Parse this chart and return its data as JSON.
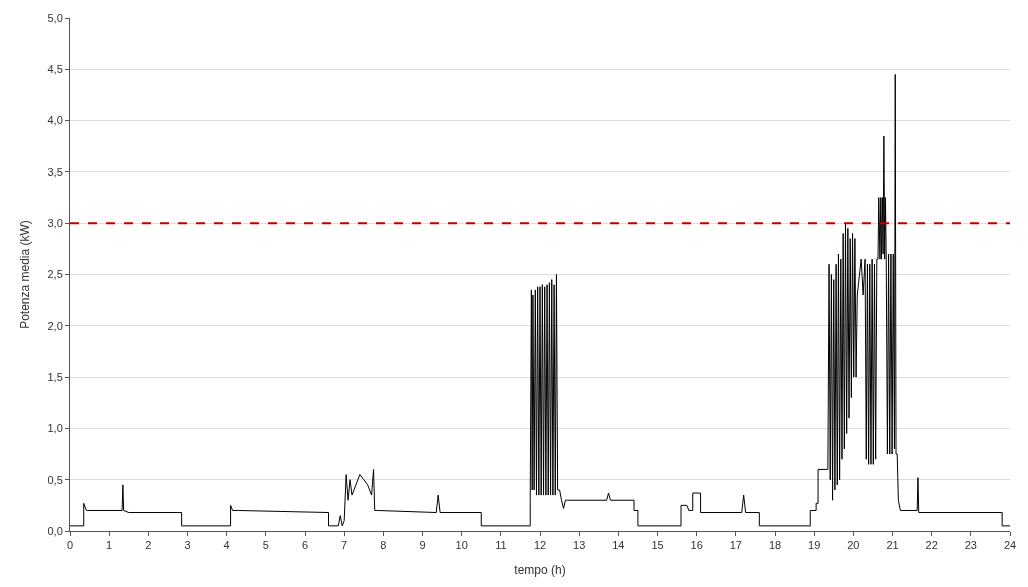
{
  "chart_data": {
    "type": "line",
    "xlabel": "tempo (h)",
    "ylabel": "Potenza media (kW)",
    "xlim": [
      0,
      24
    ],
    "xticks": [
      0,
      1,
      2,
      3,
      4,
      5,
      6,
      7,
      8,
      9,
      10,
      11,
      12,
      13,
      14,
      15,
      16,
      17,
      18,
      19,
      20,
      21,
      22,
      23,
      24
    ],
    "ylim": [
      0,
      5
    ],
    "yticks": [
      {
        "value": 0,
        "label": "0,0"
      },
      {
        "value": 0.5,
        "label": "0,5"
      },
      {
        "value": 1,
        "label": "1,0"
      },
      {
        "value": 1.5,
        "label": "1,5"
      },
      {
        "value": 2,
        "label": "2,0"
      },
      {
        "value": 2.5,
        "label": "2,5"
      },
      {
        "value": 3,
        "label": "3,0"
      },
      {
        "value": 3.5,
        "label": "3,5"
      },
      {
        "value": 4,
        "label": "4,0"
      },
      {
        "value": 4.5,
        "label": "4,5"
      },
      {
        "value": 5,
        "label": "5,0"
      }
    ],
    "grid": "y",
    "marker": "none",
    "line_style": "solid",
    "ref_lines": [
      {
        "axis": "y",
        "value": 3,
        "color": "#c00000",
        "line_style": "dashed"
      }
    ],
    "series": [
      {
        "color": "#000000",
        "x": [
          0,
          0.35,
          0.35,
          0.42,
          0.45,
          1.33,
          1.35,
          1.37,
          1.5,
          2.85,
          2.85,
          4.1,
          4.1,
          4.15,
          4.3,
          6.6,
          6.6,
          6.85,
          6.9,
          6.95,
          7.0,
          7.05,
          7.1,
          7.15,
          7.2,
          7.3,
          7.4,
          7.5,
          7.6,
          7.7,
          7.75,
          7.78,
          7.85,
          9.35,
          9.4,
          9.45,
          10.5,
          10.5,
          11.75,
          11.75,
          11.78,
          11.8,
          11.82,
          11.85,
          11.88,
          11.91,
          11.94,
          11.97,
          12.0,
          12.03,
          12.06,
          12.09,
          12.12,
          12.15,
          12.18,
          12.21,
          12.24,
          12.27,
          12.3,
          12.33,
          12.36,
          12.39,
          12.42,
          12.45,
          12.5,
          12.55,
          12.6,
          12.65,
          12.7,
          13.7,
          13.75,
          13.8,
          14.4,
          14.4,
          14.5,
          14.5,
          15.6,
          15.6,
          15.75,
          15.8,
          15.9,
          15.9,
          16.1,
          16.1,
          17.15,
          17.2,
          17.25,
          17.6,
          17.6,
          18.9,
          18.9,
          19.05,
          19.05,
          19.1,
          19.1,
          19.35,
          19.38,
          19.41,
          19.44,
          19.47,
          19.5,
          19.53,
          19.56,
          19.59,
          19.62,
          19.65,
          19.68,
          19.71,
          19.74,
          19.77,
          19.8,
          19.83,
          19.86,
          19.89,
          19.92,
          19.95,
          19.98,
          20.01,
          20.04,
          20.07,
          20.1,
          20.2,
          20.25,
          20.3,
          20.33,
          20.36,
          20.39,
          20.42,
          20.45,
          20.48,
          20.51,
          20.54,
          20.57,
          20.6,
          20.63,
          20.65,
          20.68,
          20.7,
          20.72,
          20.74,
          20.76,
          20.78,
          20.8,
          20.82,
          20.84,
          20.87,
          20.9,
          20.93,
          20.96,
          20.99,
          21.02,
          21.05,
          21.07,
          21.09,
          21.12,
          21.15,
          21.2,
          21.63,
          21.65,
          21.67,
          23.8,
          23.8,
          24
        ],
        "values": [
          0.05,
          0.05,
          0.27,
          0.2,
          0.2,
          0.2,
          0.45,
          0.2,
          0.18,
          0.18,
          0.05,
          0.05,
          0.25,
          0.2,
          0.2,
          0.18,
          0.05,
          0.05,
          0.15,
          0.05,
          0.1,
          0.55,
          0.3,
          0.5,
          0.35,
          0.45,
          0.55,
          0.5,
          0.45,
          0.35,
          0.6,
          0.2,
          0.2,
          0.18,
          0.35,
          0.18,
          0.18,
          0.05,
          0.05,
          0.3,
          2.35,
          0.4,
          2.3,
          0.4,
          2.35,
          0.35,
          2.38,
          0.35,
          2.38,
          0.35,
          2.4,
          0.35,
          2.38,
          0.35,
          2.4,
          0.35,
          2.42,
          0.35,
          2.45,
          0.35,
          2.4,
          0.35,
          2.5,
          0.4,
          0.4,
          0.3,
          0.22,
          0.3,
          0.3,
          0.3,
          0.37,
          0.3,
          0.3,
          0.2,
          0.2,
          0.05,
          0.05,
          0.25,
          0.25,
          0.2,
          0.2,
          0.37,
          0.37,
          0.18,
          0.18,
          0.35,
          0.18,
          0.18,
          0.05,
          0.05,
          0.2,
          0.2,
          0.27,
          0.27,
          0.6,
          0.6,
          2.6,
          0.5,
          2.5,
          0.3,
          2.45,
          0.4,
          2.6,
          0.45,
          2.7,
          0.5,
          2.65,
          0.7,
          2.9,
          0.8,
          3.0,
          0.95,
          2.95,
          1.1,
          2.85,
          1.3,
          2.9,
          1.5,
          2.85,
          1.5,
          2.3,
          2.65,
          2.3,
          2.65,
          0.7,
          2.6,
          0.65,
          2.6,
          0.65,
          2.65,
          0.65,
          2.6,
          0.7,
          2.65,
          2.65,
          3.25,
          2.65,
          3.25,
          2.65,
          3.25,
          2.7,
          3.85,
          2.65,
          3.25,
          2.65,
          0.75,
          2.7,
          0.75,
          2.7,
          0.75,
          2.7,
          0.8,
          4.45,
          0.75,
          0.75,
          0.3,
          0.2,
          0.2,
          0.52,
          0.18,
          0.18,
          0.05,
          0.05
        ]
      }
    ]
  }
}
